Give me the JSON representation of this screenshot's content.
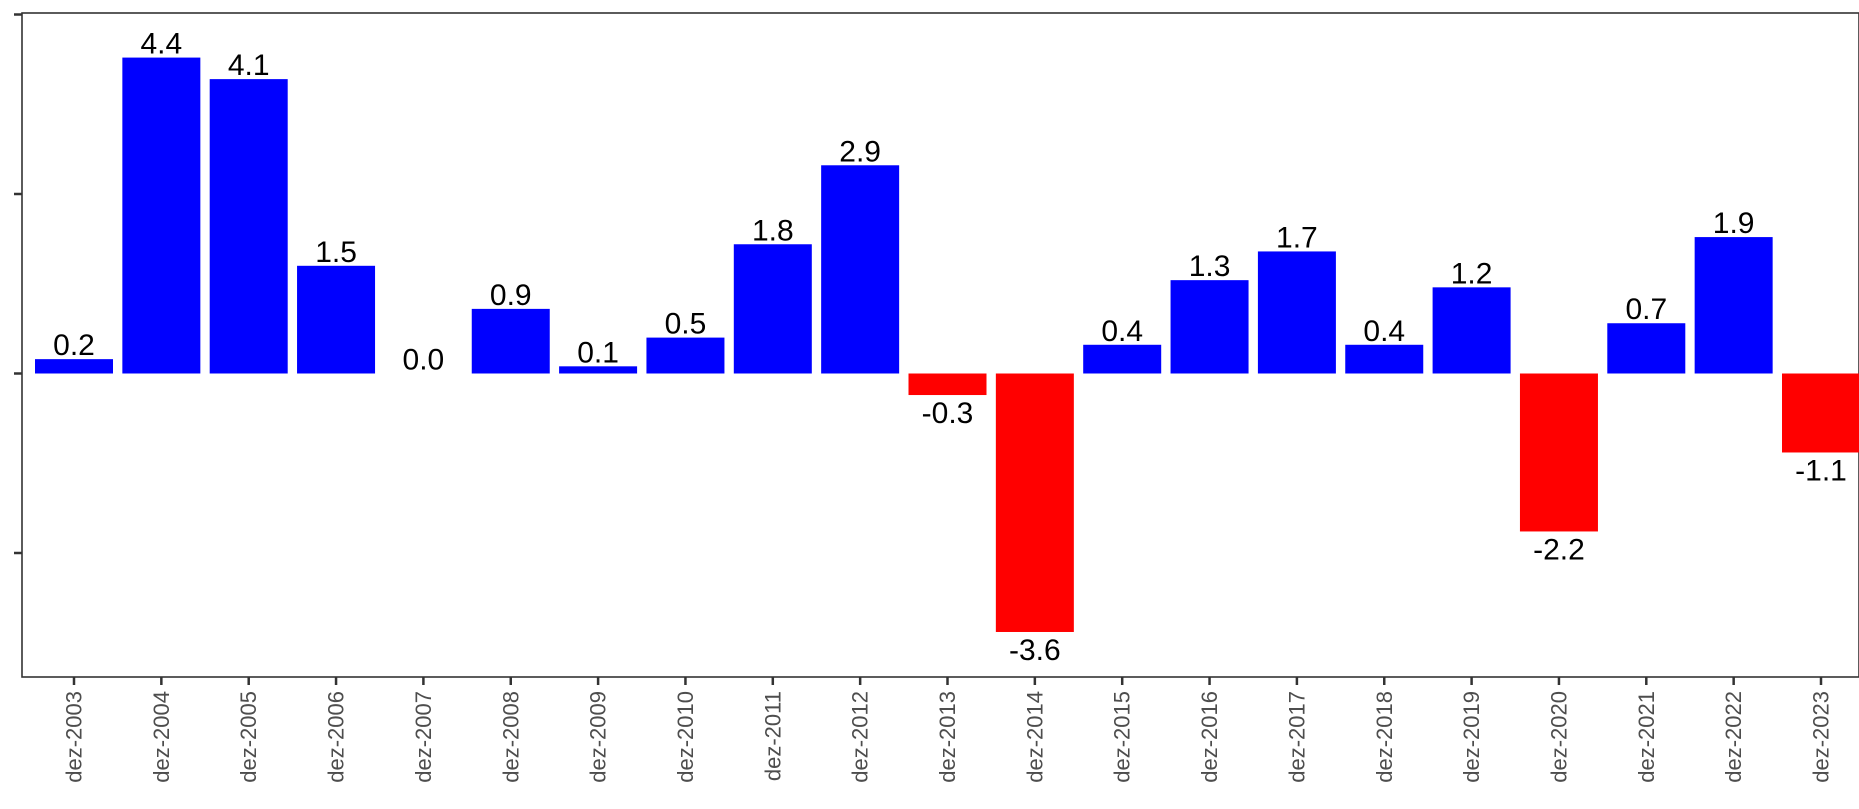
{
  "chart_data": {
    "type": "bar",
    "title": "",
    "xlabel": "",
    "ylabel": "",
    "categories": [
      "dez-2003",
      "dez-2004",
      "dez-2005",
      "dez-2006",
      "dez-2007",
      "dez-2008",
      "dez-2009",
      "dez-2010",
      "dez-2011",
      "dez-2012",
      "dez-2013",
      "dez-2014",
      "dez-2015",
      "dez-2016",
      "dez-2017",
      "dez-2018",
      "dez-2019",
      "dez-2020",
      "dez-2021",
      "dez-2022",
      "dez-2023"
    ],
    "values": [
      0.2,
      4.4,
      4.1,
      1.5,
      0.0,
      0.9,
      0.1,
      0.5,
      1.8,
      2.9,
      -0.3,
      -3.6,
      0.4,
      1.3,
      1.7,
      0.4,
      1.2,
      -2.2,
      0.7,
      1.9,
      -1.1
    ],
    "value_labels": [
      "0.2",
      "4.4",
      "4.1",
      "1.5",
      "0.0",
      "0.9",
      "0.1",
      "0.5",
      "1.8",
      "2.9",
      "-0.3",
      "-3.6",
      "0.4",
      "1.3",
      "1.7",
      "0.4",
      "1.2",
      "-2.2",
      "0.7",
      "1.9",
      "-1.1"
    ],
    "ylim": [
      -4.2,
      5.0
    ],
    "y_ticks": [
      -2.5,
      0,
      2.5,
      5.0
    ],
    "y_tick_labels_visible": false,
    "grid": false,
    "legend": "none",
    "colors": {
      "positive": "#0000ff",
      "negative": "#ff0000",
      "axis": "#333333",
      "tick_label": "#4d4d4d"
    }
  }
}
